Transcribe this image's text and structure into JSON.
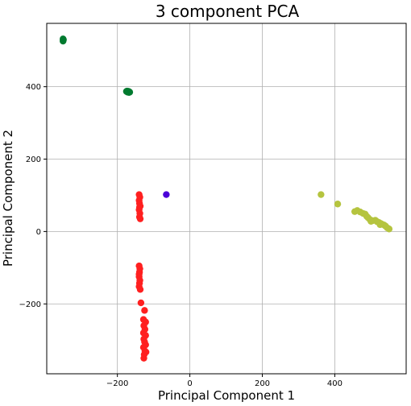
{
  "chart_data": {
    "type": "scatter",
    "title": "3 component PCA",
    "xlabel": "Principal Component 1",
    "ylabel": "Principal Component 2",
    "xlim": [
      -395,
      597
    ],
    "ylim": [
      -393,
      575
    ],
    "xticks": [
      -200,
      0,
      200,
      400
    ],
    "xtick_labels": [
      "−200",
      "0",
      "200",
      "400"
    ],
    "yticks": [
      -200,
      0,
      200,
      400
    ],
    "ytick_labels": [
      "−200",
      "0",
      "200",
      "400"
    ],
    "grid": true,
    "legend": "none",
    "series": [
      {
        "color": "#007a2f",
        "points": [
          [
            -350,
            532
          ],
          [
            -350,
            526
          ],
          [
            -349,
            530
          ],
          [
            -175,
            387
          ],
          [
            -172,
            385
          ],
          [
            -170,
            386
          ],
          [
            -168,
            384
          ],
          [
            -166,
            385
          ],
          [
            -173,
            388
          ],
          [
            -169,
            387
          ]
        ]
      },
      {
        "color": "#ff2020",
        "points": [
          [
            -140,
            102
          ],
          [
            -138,
            95
          ],
          [
            -140,
            86
          ],
          [
            -139,
            78
          ],
          [
            -137,
            70
          ],
          [
            -140,
            60
          ],
          [
            -138,
            50
          ],
          [
            -139,
            40
          ],
          [
            -137,
            35
          ],
          [
            -139,
            67
          ],
          [
            -140,
            -95
          ],
          [
            -138,
            -103
          ],
          [
            -139,
            -112
          ],
          [
            -140,
            -125
          ],
          [
            -138,
            -135
          ],
          [
            -139,
            -143
          ],
          [
            -140,
            -152
          ],
          [
            -137,
            -160
          ],
          [
            -140,
            -118
          ],
          [
            -135,
            -197
          ],
          [
            -125,
            -218
          ],
          [
            -128,
            -243
          ],
          [
            -122,
            -250
          ],
          [
            -127,
            -260
          ],
          [
            -124,
            -270
          ],
          [
            -128,
            -280
          ],
          [
            -122,
            -287
          ],
          [
            -127,
            -297
          ],
          [
            -125,
            -305
          ],
          [
            -122,
            -313
          ],
          [
            -128,
            -320
          ],
          [
            -124,
            -330
          ],
          [
            -126,
            -340
          ],
          [
            -121,
            -333
          ],
          [
            -127,
            -350
          ]
        ]
      },
      {
        "color": "#4b00d8",
        "points": [
          [
            -65,
            102
          ]
        ]
      },
      {
        "color": "#b5c43f",
        "points": [
          [
            362,
            102
          ],
          [
            408,
            76
          ],
          [
            455,
            55
          ],
          [
            462,
            58
          ],
          [
            470,
            54
          ],
          [
            478,
            50
          ],
          [
            484,
            48
          ],
          [
            488,
            42
          ],
          [
            492,
            38
          ],
          [
            497,
            33
          ],
          [
            505,
            30
          ],
          [
            512,
            31
          ],
          [
            517,
            27
          ],
          [
            522,
            25
          ],
          [
            527,
            22
          ],
          [
            531,
            20
          ],
          [
            536,
            18
          ],
          [
            540,
            15
          ],
          [
            545,
            10
          ],
          [
            550,
            7
          ],
          [
            500,
            28
          ],
          [
            525,
            19
          ]
        ]
      }
    ]
  }
}
